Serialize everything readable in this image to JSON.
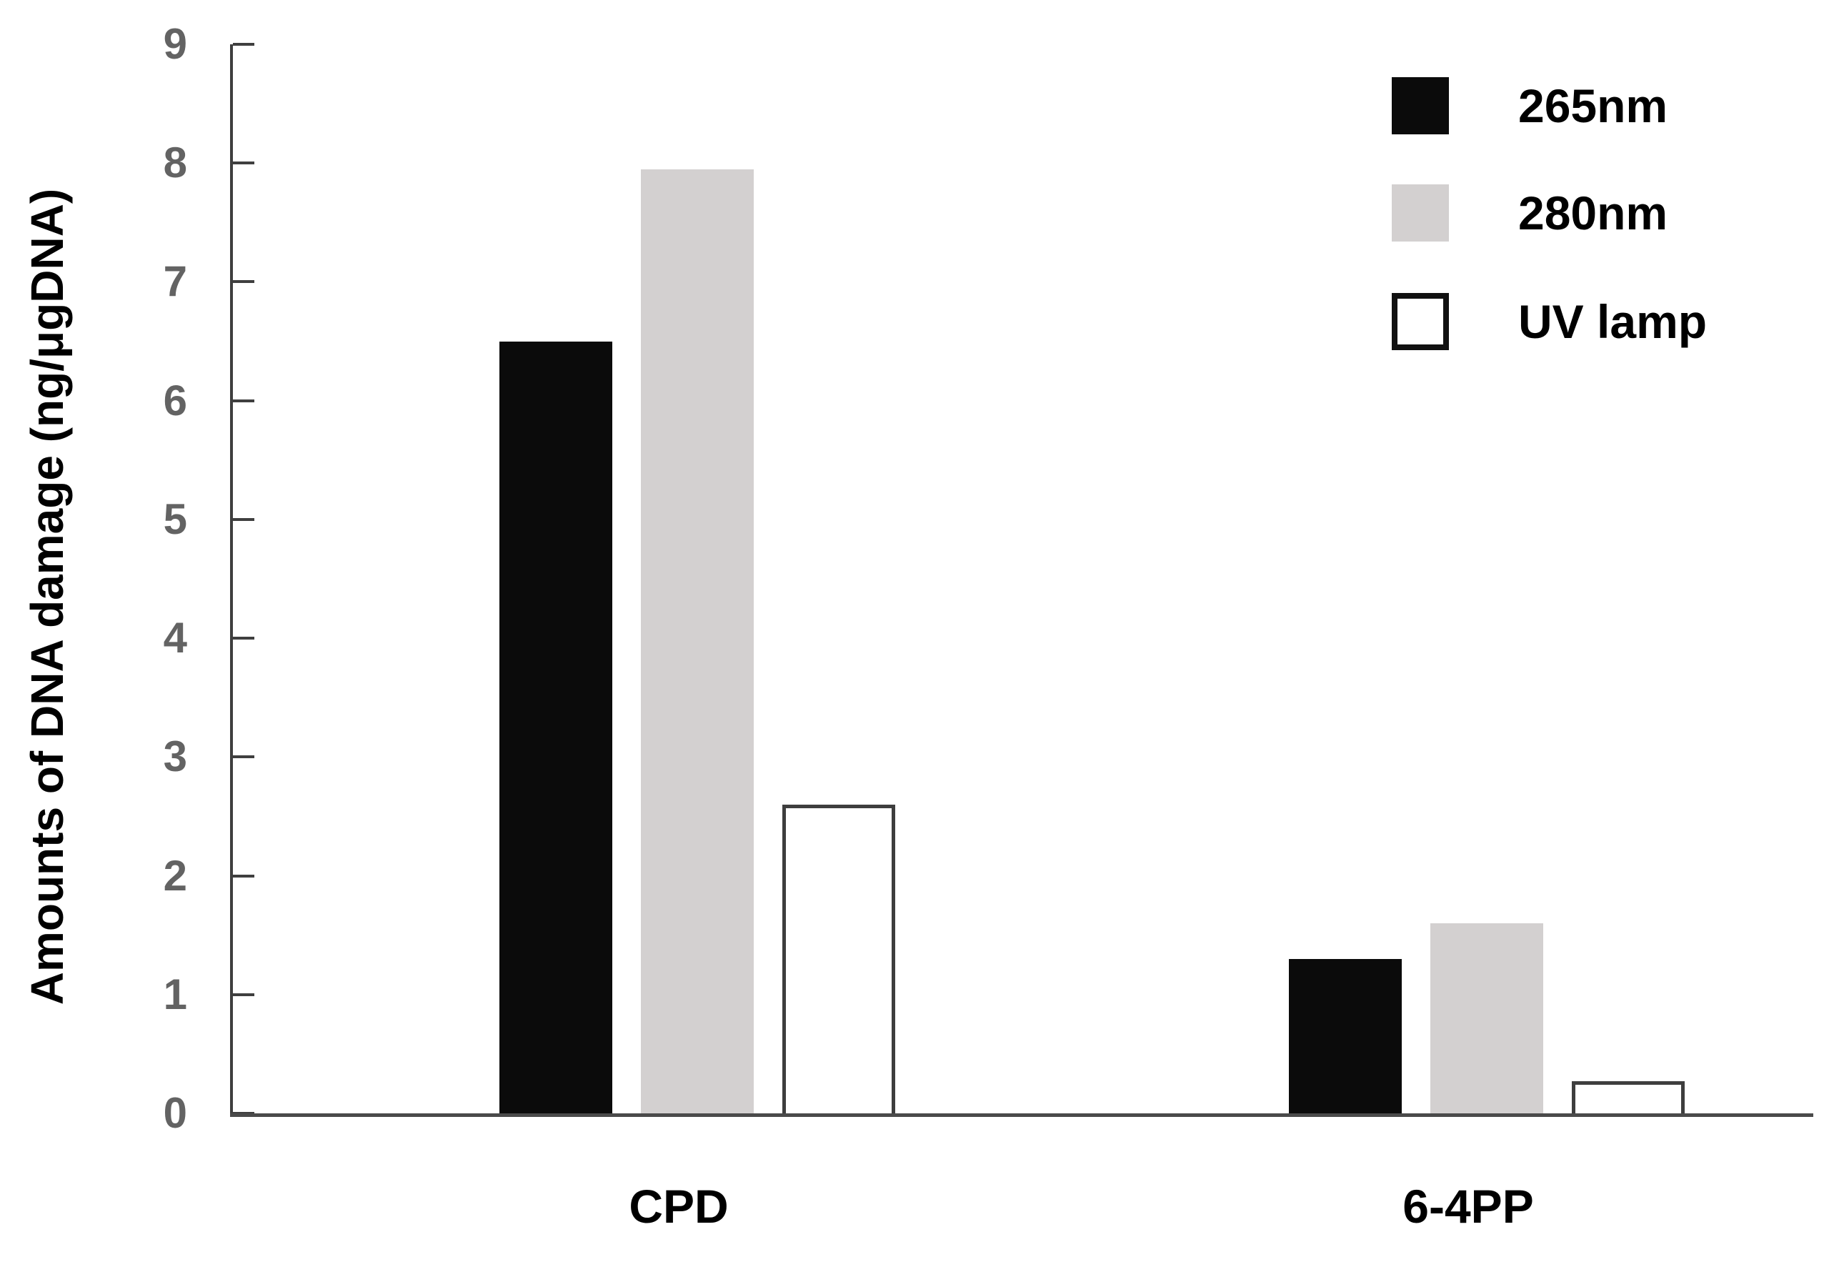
{
  "chart_data": {
    "type": "bar",
    "title": "",
    "ylabel": "Amounts of DNA damage (ng/μgDNA)",
    "xlabel": "",
    "ylim": [
      0,
      9
    ],
    "yticks": [
      0,
      1,
      2,
      3,
      4,
      5,
      6,
      7,
      8,
      9
    ],
    "categories": [
      "CPD",
      "6-4PP"
    ],
    "series": [
      {
        "name": "265nm",
        "values": [
          6.5,
          1.3
        ],
        "fill": "#0b0b0b",
        "border": null
      },
      {
        "name": "280nm",
        "values": [
          7.95,
          1.6
        ],
        "fill": "#d3d0d0",
        "border": null
      },
      {
        "name": "UV lamp",
        "values": [
          2.6,
          0.27
        ],
        "fill": "#ffffff",
        "border": "#3e3e3e"
      }
    ],
    "legend": {
      "position": "top-right",
      "entries": [
        "265nm",
        "280nm",
        "UV lamp"
      ]
    },
    "grid": false,
    "colors": {
      "axis": "#3f3f3f",
      "baseline": "#4a4a4a",
      "tick_label": "#636363",
      "category_label": "#000000",
      "legend_text": "#000000",
      "axis_title": "#000000"
    }
  }
}
